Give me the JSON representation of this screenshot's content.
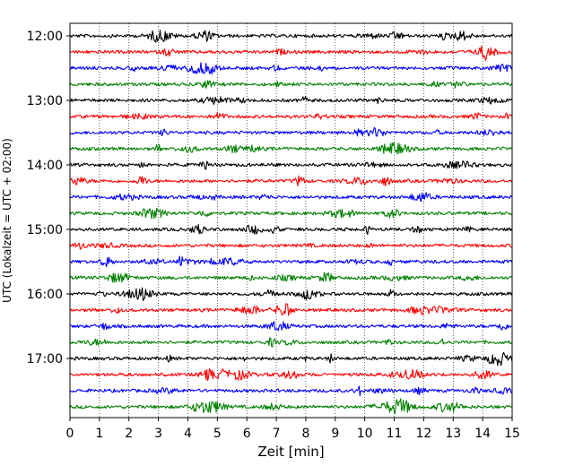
{
  "chart_data": {
    "type": "line",
    "title": "",
    "xlabel": "Zeit  [min]",
    "ylabel": "UTC (Lokalzeit = UTC + 02:00)",
    "xlim": [
      0,
      15
    ],
    "x_ticks": [
      0,
      1,
      2,
      3,
      4,
      5,
      6,
      7,
      8,
      9,
      10,
      11,
      12,
      13,
      14,
      15
    ],
    "x_grid": "dotted vertical lines at each minute",
    "row_interval_minutes": 15,
    "start_time": "12:00",
    "y_tick_labels": [
      "12:00",
      "13:00",
      "14:00",
      "15:00",
      "16:00",
      "17:00"
    ],
    "trace_colors": [
      "#000000",
      "#ff0000",
      "#0000ff",
      "#008000"
    ],
    "traces": [
      {
        "start": "12:00",
        "color": "#000000"
      },
      {
        "start": "12:15",
        "color": "#ff0000"
      },
      {
        "start": "12:30",
        "color": "#0000ff"
      },
      {
        "start": "12:45",
        "color": "#008000"
      },
      {
        "start": "13:00",
        "color": "#000000"
      },
      {
        "start": "13:15",
        "color": "#ff0000"
      },
      {
        "start": "13:30",
        "color": "#0000ff"
      },
      {
        "start": "13:45",
        "color": "#008000"
      },
      {
        "start": "14:00",
        "color": "#000000"
      },
      {
        "start": "14:15",
        "color": "#ff0000"
      },
      {
        "start": "14:30",
        "color": "#0000ff"
      },
      {
        "start": "14:45",
        "color": "#008000"
      },
      {
        "start": "15:00",
        "color": "#000000"
      },
      {
        "start": "15:15",
        "color": "#ff0000"
      },
      {
        "start": "15:30",
        "color": "#0000ff"
      },
      {
        "start": "15:45",
        "color": "#008000"
      },
      {
        "start": "16:00",
        "color": "#000000"
      },
      {
        "start": "16:15",
        "color": "#ff0000"
      },
      {
        "start": "16:30",
        "color": "#0000ff"
      },
      {
        "start": "16:45",
        "color": "#008000"
      },
      {
        "start": "17:00",
        "color": "#000000"
      },
      {
        "start": "17:15",
        "color": "#ff0000"
      },
      {
        "start": "17:30",
        "color": "#0000ff"
      },
      {
        "start": "17:45",
        "color": "#008000"
      }
    ]
  }
}
